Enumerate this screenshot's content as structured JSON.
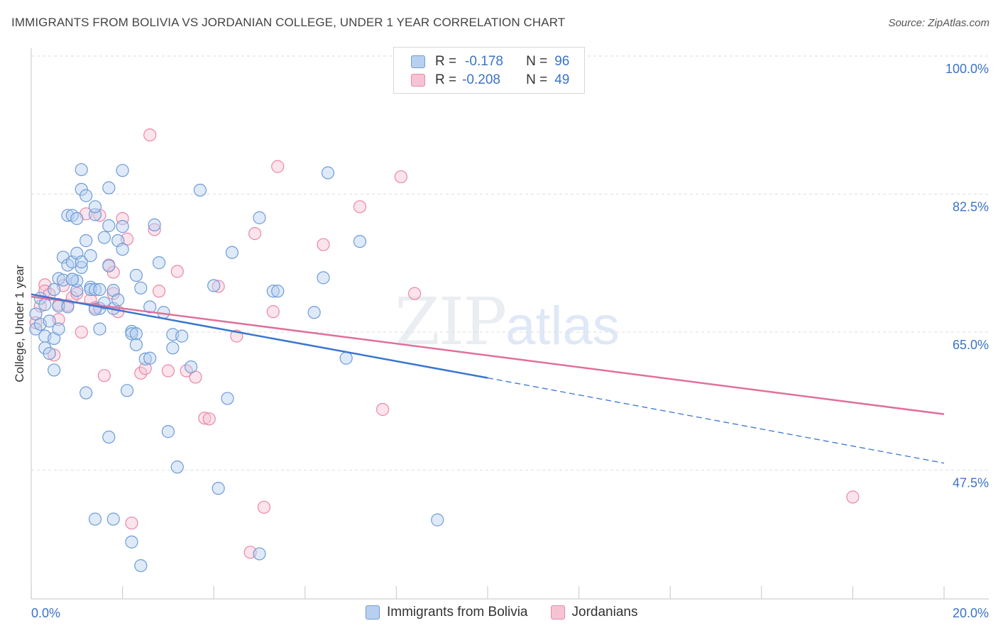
{
  "header": {
    "title": "IMMIGRANTS FROM BOLIVIA VS JORDANIAN COLLEGE, UNDER 1 YEAR CORRELATION CHART",
    "source": "Source: ZipAtlas.com"
  },
  "watermark": {
    "zip": "ZIP",
    "atlas": "atlas"
  },
  "legend": {
    "rows": [
      {
        "r_label": "R =",
        "r_value": "-0.178",
        "n_label": "N =",
        "n_value": "96"
      },
      {
        "r_label": "R =",
        "r_value": "-0.208",
        "n_label": "N =",
        "n_value": "49"
      }
    ]
  },
  "colors": {
    "blue_fill": "#b8d0f0",
    "blue_stroke": "#6e9bd8",
    "blue_line": "#3a76d0",
    "pink_fill": "#f6c3d3",
    "pink_stroke": "#e888a8",
    "pink_line": "#e0709a",
    "tick_label": "#3b73c8",
    "grid": "#dddddd"
  },
  "chart_data": {
    "type": "scatter",
    "title": "IMMIGRANTS FROM BOLIVIA VS JORDANIAN COLLEGE, UNDER 1 YEAR CORRELATION CHART",
    "xlabel": "",
    "ylabel": "College, Under 1 year",
    "xlim": [
      0,
      20
    ],
    "ylim": [
      31,
      100
    ],
    "x_tick_labels": [
      "0.0%",
      "20.0%"
    ],
    "y_ticks": [
      100,
      82.5,
      65,
      47.5
    ],
    "y_tick_labels": [
      "100.0%",
      "82.5%",
      "65.0%",
      "47.5%"
    ],
    "grid": true,
    "legend_position": "bottom-center",
    "series": [
      {
        "name": "Immigrants from Bolivia",
        "r": -0.178,
        "n": 96,
        "trend": {
          "x_start": 0,
          "y_start": 69.8,
          "x_end": 10,
          "y_end": 59.2,
          "x_dash_end": 20,
          "y_dash_end": 48.4
        },
        "points": [
          [
            0.1,
            67.3
          ],
          [
            0.1,
            65.4
          ],
          [
            0.2,
            66.0
          ],
          [
            0.2,
            69.3
          ],
          [
            0.3,
            64.5
          ],
          [
            0.3,
            63.0
          ],
          [
            0.3,
            68.5
          ],
          [
            0.4,
            66.4
          ],
          [
            0.4,
            62.3
          ],
          [
            0.5,
            60.2
          ],
          [
            0.5,
            64.2
          ],
          [
            0.5,
            70.4
          ],
          [
            0.6,
            71.8
          ],
          [
            0.6,
            65.4
          ],
          [
            0.6,
            68.3
          ],
          [
            0.7,
            71.6
          ],
          [
            0.7,
            74.5
          ],
          [
            0.8,
            73.5
          ],
          [
            0.8,
            79.8
          ],
          [
            0.8,
            68.2
          ],
          [
            0.9,
            79.8
          ],
          [
            0.9,
            73.9
          ],
          [
            0.9,
            71.7
          ],
          [
            1.0,
            70.3
          ],
          [
            1.0,
            75.0
          ],
          [
            1.0,
            71.5
          ],
          [
            1.0,
            79.4
          ],
          [
            1.1,
            73.2
          ],
          [
            1.1,
            73.9
          ],
          [
            1.1,
            85.6
          ],
          [
            1.1,
            83.1
          ],
          [
            1.2,
            82.3
          ],
          [
            1.2,
            76.6
          ],
          [
            1.2,
            57.3
          ],
          [
            1.3,
            74.7
          ],
          [
            1.3,
            70.7
          ],
          [
            1.3,
            70.4
          ],
          [
            1.4,
            79.9
          ],
          [
            1.4,
            70.4
          ],
          [
            1.4,
            80.9
          ],
          [
            1.5,
            70.4
          ],
          [
            1.5,
            65.4
          ],
          [
            1.5,
            68.0
          ],
          [
            1.6,
            77.0
          ],
          [
            1.6,
            68.7
          ],
          [
            1.7,
            83.3
          ],
          [
            1.7,
            78.5
          ],
          [
            1.7,
            73.4
          ],
          [
            1.8,
            70.3
          ],
          [
            1.8,
            68.0
          ],
          [
            1.9,
            76.6
          ],
          [
            1.9,
            69.1
          ],
          [
            2.0,
            85.5
          ],
          [
            2.0,
            75.5
          ],
          [
            2.0,
            78.4
          ],
          [
            2.1,
            57.6
          ],
          [
            2.2,
            65.1
          ],
          [
            2.2,
            64.8
          ],
          [
            2.3,
            64.8
          ],
          [
            2.3,
            63.4
          ],
          [
            2.3,
            72.2
          ],
          [
            2.4,
            70.6
          ],
          [
            2.5,
            61.6
          ],
          [
            2.6,
            61.7
          ],
          [
            2.6,
            68.2
          ],
          [
            2.7,
            78.6
          ],
          [
            2.8,
            73.8
          ],
          [
            2.9,
            67.5
          ],
          [
            3.0,
            52.4
          ],
          [
            3.1,
            64.7
          ],
          [
            3.1,
            63.0
          ],
          [
            3.2,
            47.9
          ],
          [
            3.3,
            64.5
          ],
          [
            3.5,
            60.6
          ],
          [
            3.7,
            83.0
          ],
          [
            4.0,
            70.9
          ],
          [
            4.1,
            45.2
          ],
          [
            4.3,
            56.6
          ],
          [
            4.4,
            75.1
          ],
          [
            5.0,
            79.5
          ],
          [
            5.0,
            36.9
          ],
          [
            5.3,
            70.2
          ],
          [
            5.4,
            70.2
          ],
          [
            6.2,
            67.5
          ],
          [
            6.4,
            71.9
          ],
          [
            6.5,
            85.2
          ],
          [
            6.9,
            61.7
          ],
          [
            7.2,
            76.5
          ],
          [
            8.9,
            41.2
          ],
          [
            1.4,
            41.3
          ],
          [
            1.8,
            41.3
          ],
          [
            2.2,
            38.4
          ],
          [
            2.4,
            35.4
          ],
          [
            1.7,
            51.7
          ],
          [
            1.4,
            67.9
          ],
          [
            0.9,
            71.7
          ]
        ]
      },
      {
        "name": "Jordanians",
        "r": -0.208,
        "n": 49,
        "trend": {
          "x_start": 0,
          "y_start": 69.5,
          "x_end": 20,
          "y_end": 54.6
        },
        "points": [
          [
            0.1,
            66.2
          ],
          [
            0.2,
            68.3
          ],
          [
            0.3,
            71.0
          ],
          [
            0.3,
            70.2
          ],
          [
            0.4,
            69.8
          ],
          [
            0.5,
            62.1
          ],
          [
            0.6,
            66.6
          ],
          [
            0.7,
            70.9
          ],
          [
            0.8,
            68.4
          ],
          [
            0.9,
            69.4
          ],
          [
            1.0,
            69.9
          ],
          [
            1.1,
            65.0
          ],
          [
            1.2,
            80.0
          ],
          [
            1.3,
            69.1
          ],
          [
            1.4,
            68.1
          ],
          [
            1.5,
            79.8
          ],
          [
            1.6,
            59.5
          ],
          [
            1.7,
            73.5
          ],
          [
            1.8,
            72.6
          ],
          [
            1.9,
            67.6
          ],
          [
            2.0,
            79.4
          ],
          [
            2.1,
            76.8
          ],
          [
            2.2,
            40.8
          ],
          [
            2.4,
            59.8
          ],
          [
            2.5,
            60.4
          ],
          [
            2.6,
            90.0
          ],
          [
            2.7,
            78.0
          ],
          [
            2.8,
            70.2
          ],
          [
            3.0,
            60.1
          ],
          [
            3.2,
            72.7
          ],
          [
            3.4,
            60.1
          ],
          [
            3.6,
            59.3
          ],
          [
            3.8,
            54.1
          ],
          [
            3.9,
            54.0
          ],
          [
            4.1,
            70.8
          ],
          [
            4.5,
            64.5
          ],
          [
            4.8,
            37.1
          ],
          [
            4.9,
            77.5
          ],
          [
            5.1,
            42.8
          ],
          [
            5.3,
            67.6
          ],
          [
            5.4,
            86.0
          ],
          [
            6.4,
            76.1
          ],
          [
            7.2,
            80.9
          ],
          [
            7.7,
            55.2
          ],
          [
            8.1,
            84.7
          ],
          [
            8.4,
            69.9
          ],
          [
            18.0,
            44.1
          ],
          [
            0.6,
            68.5
          ],
          [
            1.8,
            69.9
          ]
        ]
      }
    ]
  }
}
